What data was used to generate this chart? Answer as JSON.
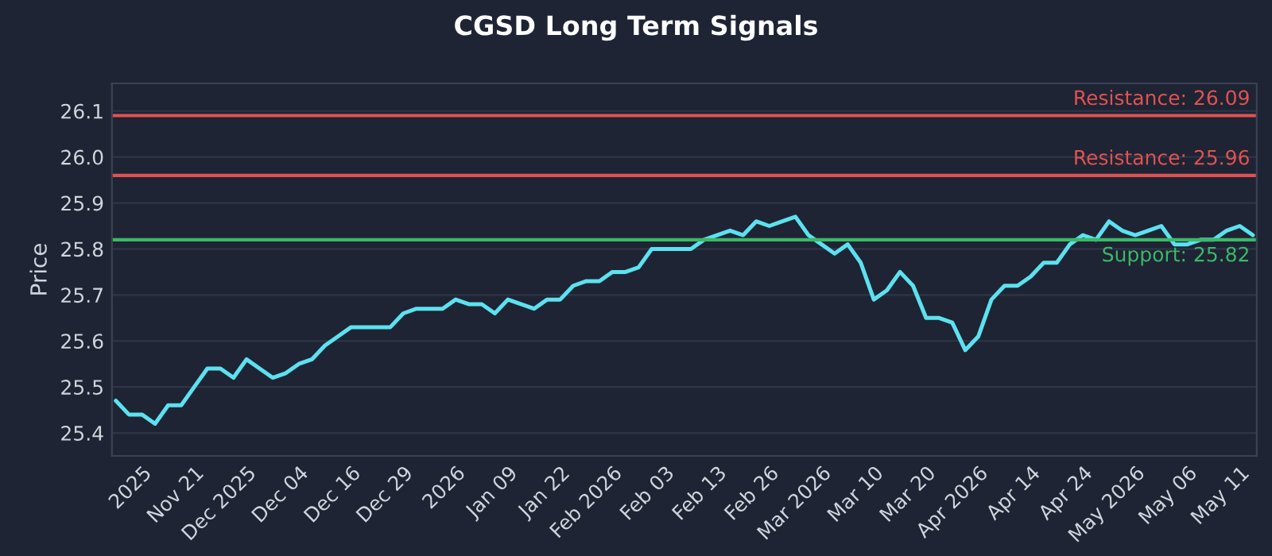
{
  "chart_data": {
    "type": "line",
    "title": "CGSD Long Term Signals",
    "ylabel": "Price",
    "categories": [
      null,
      null,
      "2025",
      null,
      null,
      null,
      "Nov 21",
      null,
      null,
      null,
      "Dec 2025",
      null,
      null,
      null,
      "Dec 04",
      null,
      null,
      null,
      "Dec 16",
      null,
      null,
      null,
      "Dec 29",
      null,
      null,
      null,
      "2026",
      null,
      null,
      null,
      "Jan 09",
      null,
      null,
      null,
      "Jan 22",
      null,
      null,
      null,
      "Feb 2026",
      null,
      null,
      null,
      "Feb 03",
      null,
      null,
      null,
      "Feb 13",
      null,
      null,
      null,
      "Feb 26",
      null,
      null,
      null,
      "Mar 2026",
      null,
      null,
      null,
      "Mar 10",
      null,
      null,
      null,
      "Mar 20",
      null,
      null,
      null,
      "Apr 2026",
      null,
      null,
      null,
      "Apr 14",
      null,
      null,
      null,
      "Apr 24",
      null,
      null,
      null,
      "May 2026",
      null,
      null,
      null,
      "May 06",
      null,
      null,
      null,
      "May 11",
      null
    ],
    "series": [
      {
        "color": "#5ce1f0",
        "values": [
          25.47,
          25.44,
          25.44,
          25.42,
          25.46,
          25.46,
          25.5,
          25.54,
          25.54,
          25.52,
          25.56,
          25.54,
          25.52,
          25.53,
          25.55,
          25.56,
          25.59,
          25.61,
          25.63,
          25.63,
          25.63,
          25.63,
          25.66,
          25.67,
          25.67,
          25.67,
          25.69,
          25.68,
          25.68,
          25.66,
          25.69,
          25.68,
          25.67,
          25.69,
          25.69,
          25.72,
          25.73,
          25.73,
          25.75,
          25.75,
          25.76,
          25.8,
          25.8,
          25.8,
          25.8,
          25.82,
          25.83,
          25.84,
          25.83,
          25.86,
          25.85,
          25.86,
          25.87,
          25.83,
          25.81,
          25.79,
          25.81,
          25.77,
          25.69,
          25.71,
          25.75,
          25.72,
          25.65,
          25.65,
          25.64,
          25.58,
          25.61,
          25.69,
          25.72,
          25.72,
          25.74,
          25.77,
          25.77,
          25.81,
          25.83,
          25.82,
          25.86,
          25.84,
          25.83,
          25.84,
          25.85,
          25.81,
          25.81,
          25.82,
          25.82,
          25.84,
          25.85,
          25.83
        ]
      }
    ],
    "ylim": [
      25.35,
      26.16
    ],
    "yticks": [
      25.4,
      25.5,
      25.6,
      25.7,
      25.8,
      25.9,
      {
        "value": 26.0,
        "label": "26.0"
      },
      26.1
    ],
    "ref_lines": [
      {
        "axis": "y",
        "value": 26.09,
        "label": "Resistance: 26.09",
        "color": "#e05252"
      },
      {
        "axis": "y",
        "value": 25.96,
        "label": "Resistance: 25.96",
        "color": "#e05252"
      },
      {
        "axis": "y",
        "value": 25.82,
        "label": "Support: 25.82",
        "color": "#3cb868"
      }
    ],
    "grid": "y",
    "legend": false
  }
}
